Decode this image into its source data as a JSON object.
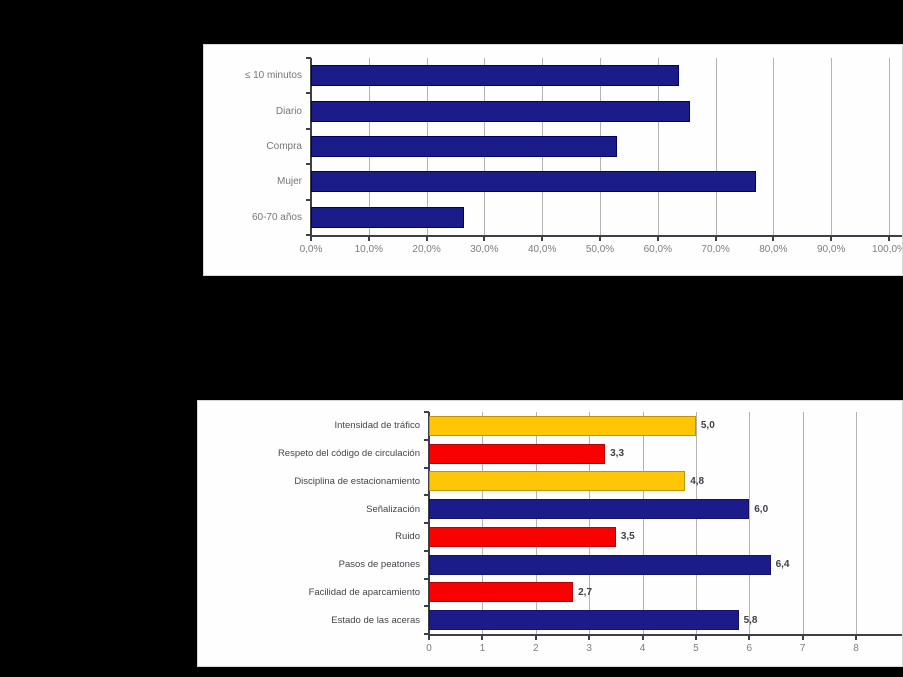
{
  "colors": {
    "page_background": "#000000",
    "panel_background": "#FEFEFE",
    "navy": "#1B1B8A",
    "yellow": "#FFC608",
    "red": "#F90101",
    "gridline": "#B3B3B3",
    "axis": "#3F3F46"
  },
  "chart_data": [
    {
      "type": "bar",
      "orientation": "horizontal",
      "categories": [
        "≤ 10 minutos",
        "Diario",
        "Compra",
        "Mujer",
        "60-70 años"
      ],
      "values": [
        63.7,
        65.5,
        52.9,
        77.0,
        26.5
      ],
      "unit": "%",
      "xlim": [
        0,
        100
      ],
      "tick_step": 10,
      "tick_labels": [
        "0,0%",
        "10,0%",
        "20,0%",
        "30,0%",
        "40,0%",
        "50,0%",
        "60,0%",
        "70,0%",
        "80,0%",
        "90,0%",
        "100,0%"
      ],
      "grid": true,
      "legend": null,
      "bar_color": "#1B1B8A",
      "bar_border": "#000066",
      "label_color": "#75757D",
      "tick_color": "#7C7C84"
    },
    {
      "type": "bar",
      "orientation": "horizontal",
      "categories": [
        "Intensidad de tráfico",
        "Respeto del código de circulación",
        "Disciplina de estacionamiento",
        "Señalización",
        "Ruido",
        "Pasos de peatones",
        "Facilidad de aparcamiento",
        "Estado de las aceras"
      ],
      "values": [
        5.0,
        3.3,
        4.8,
        6.0,
        3.5,
        6.4,
        2.7,
        5.8
      ],
      "value_labels": [
        "5,0",
        "3,3",
        "4,8",
        "6,0",
        "3,5",
        "6,4",
        "2,7",
        "5,8"
      ],
      "bar_colors": [
        "#FFC608",
        "#F90101",
        "#FFC608",
        "#1B1B8A",
        "#F90101",
        "#1B1B8A",
        "#F90101",
        "#1B1B8A"
      ],
      "xlim": [
        0,
        8
      ],
      "tick_step": 1,
      "tick_labels": [
        "0",
        "1",
        "2",
        "3",
        "4",
        "5",
        "6",
        "7",
        "8"
      ],
      "grid": true,
      "legend": null,
      "value_label_color": "#3F3F4A",
      "label_color": "#44444C",
      "tick_color": "#7C7C84"
    }
  ]
}
